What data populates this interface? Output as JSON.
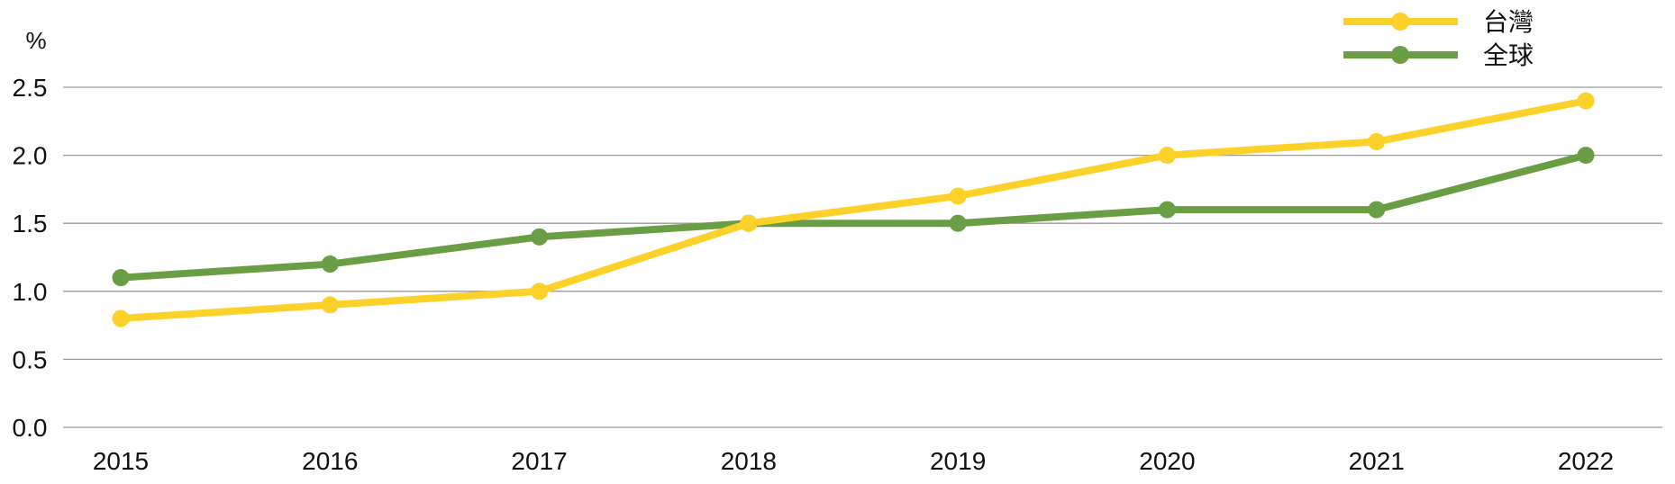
{
  "chart_data": {
    "type": "line",
    "ylabel": "%",
    "xlabel": "",
    "categories": [
      "2015",
      "2016",
      "2017",
      "2018",
      "2019",
      "2020",
      "2021",
      "2022"
    ],
    "ylim": [
      0,
      2.5
    ],
    "yticks": [
      "0.0",
      "0.5",
      "1.0",
      "1.5",
      "2.0",
      "2.5"
    ],
    "grid": true,
    "legend_position": "top-right",
    "series": [
      {
        "name": "台灣",
        "color": "#FCD12A",
        "values": [
          0.8,
          0.9,
          1.0,
          1.5,
          1.7,
          2.0,
          2.1,
          2.4
        ]
      },
      {
        "name": "全球",
        "color": "#6A9E45",
        "values": [
          1.1,
          1.2,
          1.4,
          1.5,
          1.5,
          1.6,
          1.6,
          2.0
        ]
      }
    ]
  }
}
